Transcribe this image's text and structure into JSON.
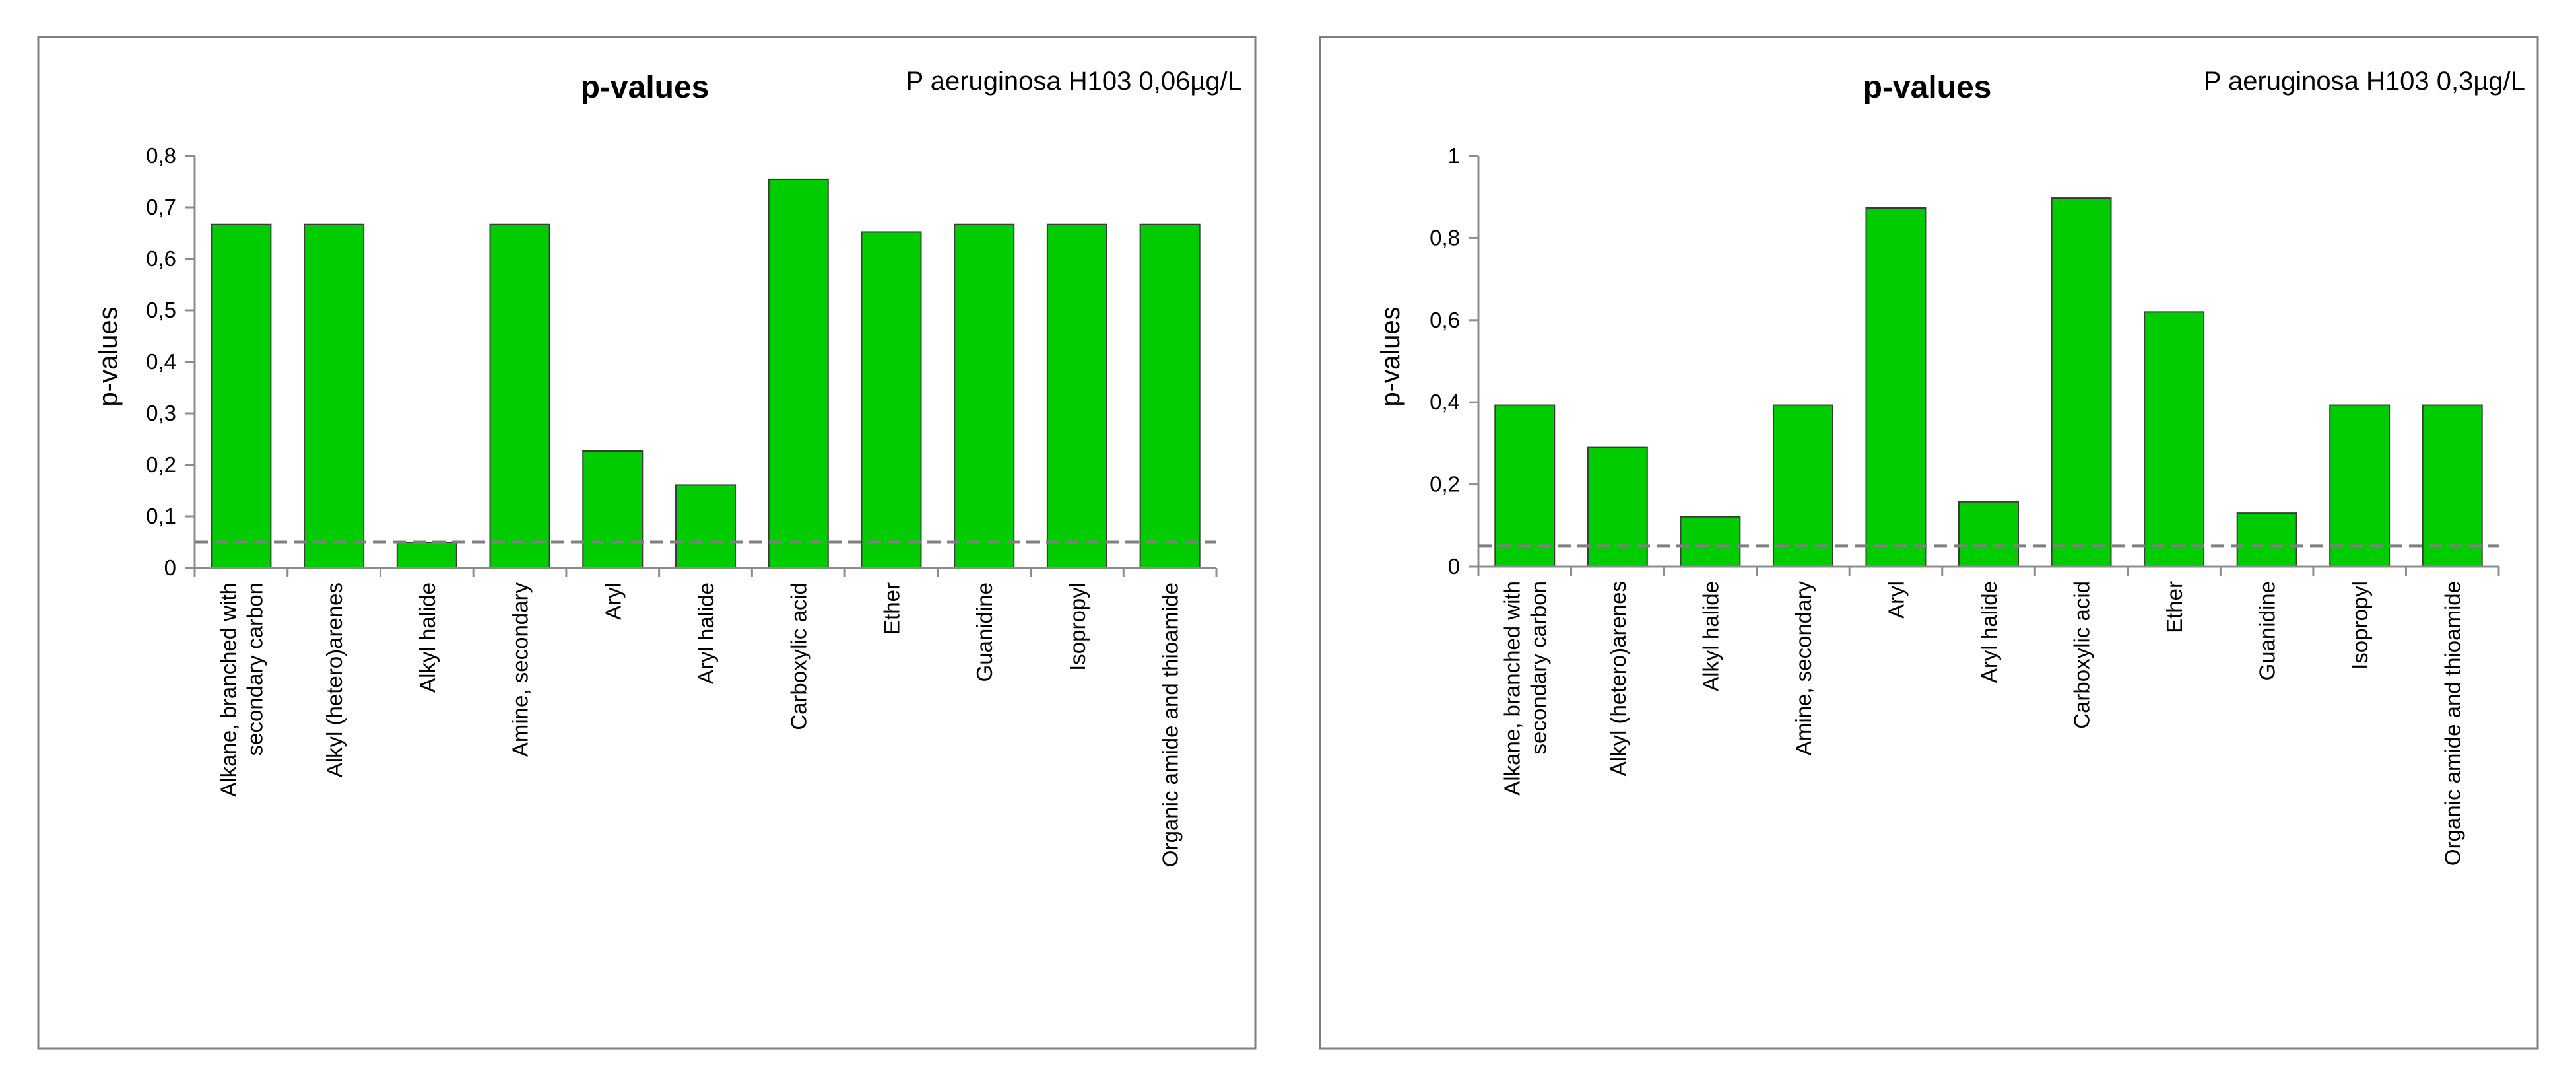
{
  "chart_data": [
    {
      "type": "bar",
      "title": "p-values",
      "subtitle": "P aeruginosa H103 0,06µg/L",
      "xlabel": "",
      "ylabel": "p-values",
      "ylim": [
        0,
        0.8
      ],
      "yticks": [
        0,
        0.1,
        0.2,
        0.3,
        0.4,
        0.5,
        0.6,
        0.7,
        0.8
      ],
      "ytick_labels": [
        "0",
        "0,1",
        "0,2",
        "0,3",
        "0,4",
        "0,5",
        "0,6",
        "0,7",
        "0,8"
      ],
      "threshold": 0.05,
      "bar_color": "#00cc00",
      "categories": [
        "Alkane, branched with secondary carbon",
        "Alkyl (hetero)arenes",
        "Alkyl halide",
        "Amine, secondary",
        "Aryl",
        "Aryl halide",
        "Carboxylic acid",
        "Ether",
        "Guanidine",
        "Isopropyl",
        "Organic amide and thioamide"
      ],
      "values": [
        0.667,
        0.667,
        0.05,
        0.667,
        0.227,
        0.161,
        0.754,
        0.652,
        0.667,
        0.667,
        0.667
      ]
    },
    {
      "type": "bar",
      "title": "p-values",
      "subtitle": "P aeruginosa H103 0,3µg/L",
      "xlabel": "",
      "ylabel": "p-values",
      "ylim": [
        0,
        1
      ],
      "yticks": [
        0,
        0.2,
        0.4,
        0.6,
        0.8,
        1
      ],
      "ytick_labels": [
        "0",
        "0,2",
        "0,4",
        "0,6",
        "0,8",
        "1"
      ],
      "threshold": 0.05,
      "bar_color": "#00cc00",
      "categories": [
        "Alkane, branched with secondary carbon",
        "Alkyl (hetero)arenes",
        "Alkyl halide",
        "Amine, secondary",
        "Aryl",
        "Aryl halide",
        "Carboxylic acid",
        "Ether",
        "Guanidine",
        "Isopropyl",
        "Organic amide and thioamide"
      ],
      "values": [
        0.393,
        0.29,
        0.121,
        0.393,
        0.873,
        0.158,
        0.897,
        0.62,
        0.13,
        0.393,
        0.393
      ]
    }
  ]
}
